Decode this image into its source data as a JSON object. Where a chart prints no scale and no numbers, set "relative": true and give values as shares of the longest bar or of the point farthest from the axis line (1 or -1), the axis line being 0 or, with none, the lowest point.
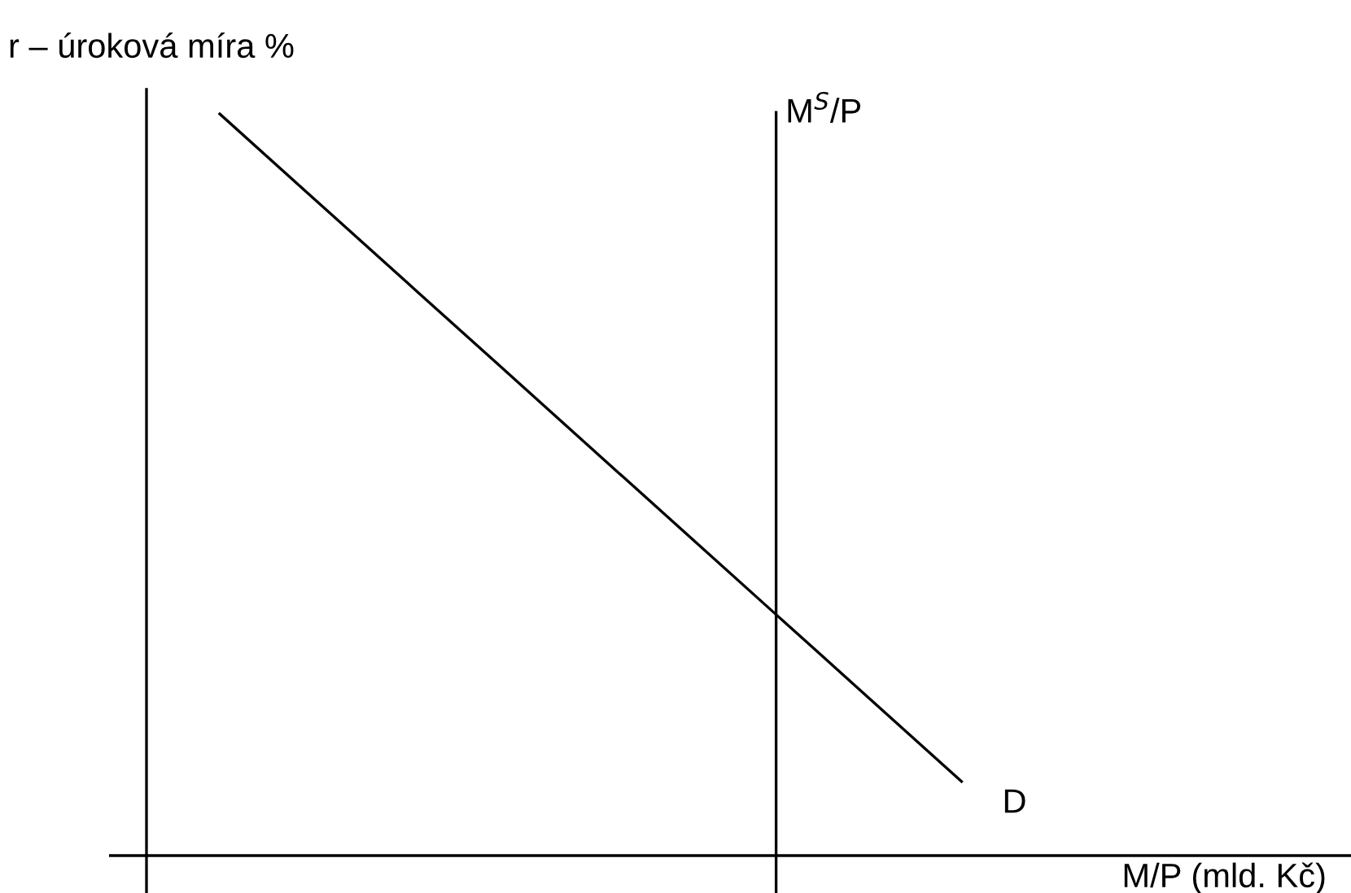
{
  "chart_data": {
    "type": "line",
    "relative": true,
    "xlabel": "M/P (mld. Kč)",
    "ylabel": "r – úroková míra %",
    "categories": [
      null,
      null,
      null,
      null,
      null,
      null,
      null,
      null,
      null
    ],
    "series": [
      {
        "name": "D",
        "color": "#000000",
        "values": [
          1,
          0.8875,
          0.775,
          0.6625,
          0.55,
          0.4375,
          0.325,
          0.2125,
          0.1
        ]
      }
    ],
    "annotations": [
      "M$^{S}$/P"
    ],
    "grid": false,
    "legend": false,
    "marker": "none",
    "line_style": "solid"
  }
}
